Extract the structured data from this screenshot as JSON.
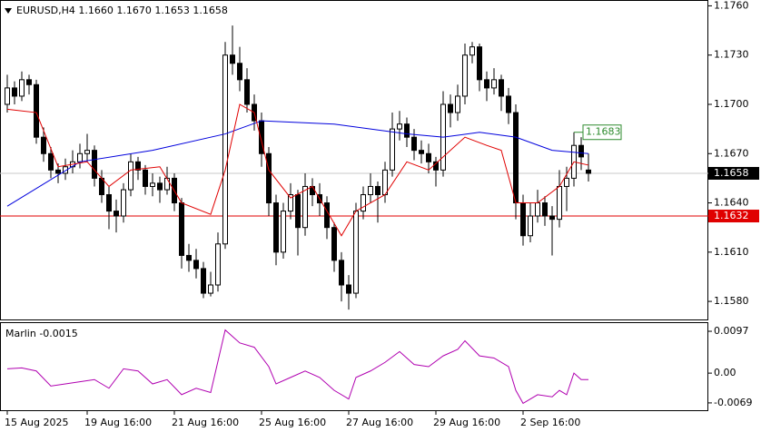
{
  "chart_data": [
    {
      "type": "candlestick",
      "title": "EURUSD,H4  1.1660 1.1670 1.1653 1.1658",
      "candles": [
        [
          1.17,
          1.1718,
          1.1695,
          1.171
        ],
        [
          1.171,
          1.1714,
          1.17,
          1.1705
        ],
        [
          1.1705,
          1.172,
          1.1702,
          1.1715
        ],
        [
          1.1715,
          1.1718,
          1.1706,
          1.1712
        ],
        [
          1.1712,
          1.1715,
          1.1676,
          1.168
        ],
        [
          1.168,
          1.1686,
          1.1665,
          1.167
        ],
        [
          1.167,
          1.1674,
          1.1655,
          1.166
        ],
        [
          1.166,
          1.1664,
          1.1652,
          1.1658
        ],
        [
          1.1658,
          1.1667,
          1.1654,
          1.1662
        ],
        [
          1.1662,
          1.1672,
          1.1658,
          1.1665
        ],
        [
          1.1665,
          1.1676,
          1.1661,
          1.167
        ],
        [
          1.167,
          1.1682,
          1.1665,
          1.1672
        ],
        [
          1.1672,
          1.1675,
          1.165,
          1.1655
        ],
        [
          1.1655,
          1.166,
          1.164,
          1.1645
        ],
        [
          1.1645,
          1.165,
          1.1624,
          1.1635
        ],
        [
          1.1635,
          1.1642,
          1.1622,
          1.1632
        ],
        [
          1.1632,
          1.1652,
          1.1628,
          1.1648
        ],
        [
          1.1648,
          1.167,
          1.1644,
          1.1665
        ],
        [
          1.1665,
          1.1668,
          1.1654,
          1.166
        ],
        [
          1.166,
          1.1663,
          1.1645,
          1.165
        ],
        [
          1.165,
          1.1658,
          1.1644,
          1.1652
        ],
        [
          1.1652,
          1.1656,
          1.164,
          1.1648
        ],
        [
          1.1648,
          1.1662,
          1.1645,
          1.1655
        ],
        [
          1.1655,
          1.1658,
          1.1635,
          1.164
        ],
        [
          1.164,
          1.1643,
          1.16,
          1.1608
        ],
        [
          1.1608,
          1.1615,
          1.1598,
          1.1605
        ],
        [
          1.1605,
          1.1612,
          1.1594,
          1.16
        ],
        [
          1.16,
          1.1604,
          1.1582,
          1.1585
        ],
        [
          1.1585,
          1.1598,
          1.1583,
          1.159
        ],
        [
          1.159,
          1.1622,
          1.1586,
          1.1615
        ],
        [
          1.1615,
          1.1738,
          1.1612,
          1.173
        ],
        [
          1.173,
          1.1748,
          1.1718,
          1.1725
        ],
        [
          1.1725,
          1.1735,
          1.1708,
          1.1715
        ],
        [
          1.1715,
          1.1722,
          1.1695,
          1.17
        ],
        [
          1.17,
          1.1706,
          1.1684,
          1.169
        ],
        [
          1.169,
          1.1695,
          1.1662,
          1.167
        ],
        [
          1.167,
          1.1674,
          1.1632,
          1.164
        ],
        [
          1.164,
          1.1645,
          1.1602,
          1.161
        ],
        [
          1.161,
          1.164,
          1.1606,
          1.1635
        ],
        [
          1.1635,
          1.1652,
          1.163,
          1.1645
        ],
        [
          1.1645,
          1.1648,
          1.1608,
          1.1625
        ],
        [
          1.1625,
          1.1658,
          1.162,
          1.165
        ],
        [
          1.165,
          1.1655,
          1.1638,
          1.1645
        ],
        [
          1.1645,
          1.1652,
          1.1632,
          1.164
        ],
        [
          1.164,
          1.1644,
          1.1618,
          1.1625
        ],
        [
          1.1625,
          1.1628,
          1.1598,
          1.1605
        ],
        [
          1.1605,
          1.161,
          1.158,
          1.159
        ],
        [
          1.159,
          1.1596,
          1.1575,
          1.1585
        ],
        [
          1.1585,
          1.164,
          1.1582,
          1.1635
        ],
        [
          1.1635,
          1.165,
          1.163,
          1.1645
        ],
        [
          1.1645,
          1.1658,
          1.164,
          1.165
        ],
        [
          1.165,
          1.1653,
          1.1628,
          1.1645
        ],
        [
          1.1645,
          1.1665,
          1.164,
          1.166
        ],
        [
          1.166,
          1.1695,
          1.1656,
          1.1685
        ],
        [
          1.1685,
          1.1696,
          1.1678,
          1.1688
        ],
        [
          1.1688,
          1.1692,
          1.1674,
          1.168
        ],
        [
          1.168,
          1.1685,
          1.1666,
          1.1672
        ],
        [
          1.1672,
          1.1678,
          1.1664,
          1.167
        ],
        [
          1.167,
          1.1676,
          1.1658,
          1.1665
        ],
        [
          1.1665,
          1.1668,
          1.165,
          1.166
        ],
        [
          1.166,
          1.1708,
          1.1656,
          1.17
        ],
        [
          1.17,
          1.1706,
          1.1686,
          1.1695
        ],
        [
          1.1695,
          1.1712,
          1.169,
          1.1705
        ],
        [
          1.1705,
          1.1737,
          1.17,
          1.173
        ],
        [
          1.173,
          1.1738,
          1.1725,
          1.1735
        ],
        [
          1.1735,
          1.1737,
          1.1708,
          1.1715
        ],
        [
          1.1715,
          1.172,
          1.1702,
          1.171
        ],
        [
          1.171,
          1.1722,
          1.1706,
          1.1715
        ],
        [
          1.1715,
          1.1718,
          1.1696,
          1.1705
        ],
        [
          1.1705,
          1.171,
          1.1688,
          1.1695
        ],
        [
          1.1695,
          1.17,
          1.163,
          1.164
        ],
        [
          1.164,
          1.1645,
          1.1614,
          1.162
        ],
        [
          1.162,
          1.164,
          1.1616,
          1.1632
        ],
        [
          1.1632,
          1.1648,
          1.1628,
          1.164
        ],
        [
          1.164,
          1.1644,
          1.1626,
          1.1632
        ],
        [
          1.1632,
          1.1638,
          1.1608,
          1.163
        ],
        [
          1.163,
          1.166,
          1.1625,
          1.165
        ],
        [
          1.165,
          1.1662,
          1.1635,
          1.1655
        ],
        [
          1.1655,
          1.1683,
          1.165,
          1.1675
        ],
        [
          1.1675,
          1.168,
          1.166,
          1.1668
        ],
        [
          1.166,
          1.167,
          1.1653,
          1.1658
        ]
      ],
      "up_color": "#ffffff",
      "down_color": "#000000",
      "series": [
        {
          "color": "#0000dd",
          "x": [
            0,
            10,
            20,
            30,
            35,
            45,
            55,
            60,
            65,
            70,
            75,
            80
          ],
          "values": [
            1.1638,
            1.1665,
            1.1672,
            1.1682,
            1.169,
            1.1688,
            1.1682,
            1.168,
            1.1683,
            1.168,
            1.1672,
            1.167
          ]
        },
        {
          "color": "#e00000",
          "x": [
            0,
            4,
            7,
            11,
            14,
            17,
            21,
            24,
            28,
            30,
            32,
            34,
            36,
            39,
            42,
            46,
            48,
            52,
            55,
            58,
            60,
            63,
            66,
            68,
            70,
            73,
            76,
            78,
            80
          ],
          "values": [
            1.1697,
            1.1695,
            1.1662,
            1.1665,
            1.165,
            1.166,
            1.1662,
            1.164,
            1.1633,
            1.166,
            1.17,
            1.1695,
            1.166,
            1.1643,
            1.165,
            1.162,
            1.1635,
            1.1645,
            1.1665,
            1.166,
            1.1668,
            1.168,
            1.1675,
            1.1672,
            1.164,
            1.164,
            1.165,
            1.1665,
            1.1663
          ]
        }
      ],
      "xlim": [
        -1,
        96.5
      ],
      "ylim": [
        1.1569,
        1.1763
      ],
      "yticks": [
        {
          "value": 1.176,
          "label": "1.1760"
        },
        {
          "value": 1.173,
          "label": "1.1730"
        },
        {
          "value": 1.17,
          "label": "1.1700"
        },
        {
          "value": 1.167,
          "label": "1.1670"
        },
        {
          "value": 1.164,
          "label": "1.1640"
        },
        {
          "value": 1.161,
          "label": "1.1610"
        },
        {
          "value": 1.158,
          "label": "1.1580"
        }
      ],
      "levels": [
        {
          "value": 1.1632,
          "label": "1.1632",
          "color": "#e00000"
        }
      ],
      "current": {
        "value": 1.1658,
        "label": "1.1658"
      },
      "high_marker": {
        "x": 78,
        "value": 1.1683,
        "label": "1.1683",
        "color": "#2e8b2e"
      },
      "xticks": [
        {
          "value": 0,
          "label": "15 Aug 2025"
        },
        {
          "value": 11,
          "label": "19 Aug 16:00"
        },
        {
          "value": 23,
          "label": "21 Aug 16:00"
        },
        {
          "value": 35,
          "label": "25 Aug 16:00"
        },
        {
          "value": 47,
          "label": "27 Aug 16:00"
        },
        {
          "value": 59,
          "label": "29 Aug 16:00"
        },
        {
          "value": 71,
          "label": "2 Sep 16:00"
        }
      ]
    },
    {
      "type": "line",
      "title": "Marlin -0.0015",
      "color": "#b000b0",
      "x": [
        0,
        2,
        4,
        6,
        8,
        10,
        12,
        14,
        16,
        18,
        20,
        22,
        24,
        26,
        28,
        30,
        32,
        34,
        36,
        37,
        39,
        41,
        43,
        45,
        47,
        48,
        50,
        52,
        54,
        56,
        58,
        60,
        62,
        63,
        65,
        67,
        69,
        70,
        71,
        73,
        75,
        76,
        77,
        78,
        79,
        80
      ],
      "values": [
        0.001,
        0.0012,
        0.0005,
        -0.003,
        -0.0025,
        -0.002,
        -0.0015,
        -0.0035,
        0.001,
        0.0005,
        -0.0025,
        -0.0015,
        -0.005,
        -0.0035,
        -0.0045,
        0.01,
        0.007,
        0.006,
        0.0015,
        -0.0025,
        -0.001,
        0.0005,
        -0.001,
        -0.004,
        -0.006,
        -0.001,
        0.0005,
        0.0025,
        0.005,
        0.002,
        0.0015,
        0.004,
        0.0055,
        0.0075,
        0.004,
        0.0035,
        0.0015,
        -0.004,
        -0.007,
        -0.005,
        -0.0055,
        -0.004,
        -0.005,
        0.0,
        -0.0015,
        -0.0015
      ],
      "xlim": [
        -1,
        96.5
      ],
      "ylim": [
        -0.0086,
        0.0116
      ],
      "yticks": [
        {
          "value": 0.0097,
          "label": "0.0097"
        },
        {
          "value": 0,
          "label": "0.00"
        },
        {
          "value": -0.0069,
          "label": "-0.0069"
        }
      ]
    }
  ]
}
